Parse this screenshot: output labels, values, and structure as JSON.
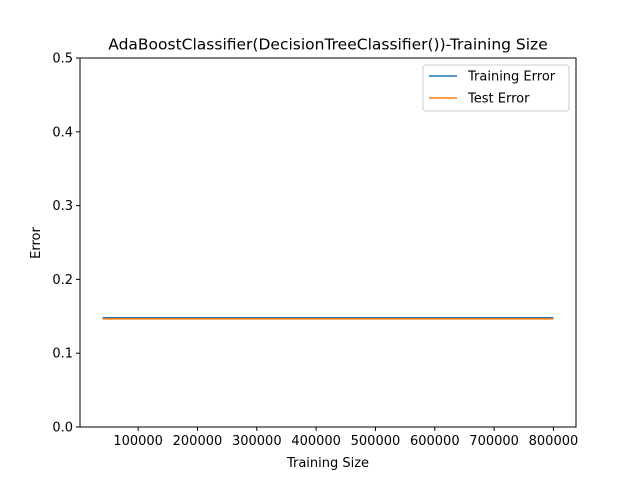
{
  "chart_data": {
    "type": "line",
    "title": "AdaBoostClassifier(DecisionTreeClassifier())-Training Size",
    "xlabel": "Training Size",
    "ylabel": "Error",
    "x": [
      40000,
      800000
    ],
    "xlim": [
      2000,
      838000
    ],
    "ylim": [
      0,
      0.5
    ],
    "xticks": [
      100000,
      200000,
      300000,
      400000,
      500000,
      600000,
      700000,
      800000
    ],
    "xtick_labels": [
      "100000",
      "200000",
      "300000",
      "400000",
      "500000",
      "600000",
      "700000",
      "800000"
    ],
    "yticks": [
      0,
      0.1,
      0.2,
      0.3,
      0.4,
      0.5
    ],
    "ytick_labels": [
      "0.0",
      "0.1",
      "0.2",
      "0.3",
      "0.4",
      "0.5"
    ],
    "grid": false,
    "legend_position": "top-right",
    "series": [
      {
        "name": "Training Error",
        "color": "#1f77b4",
        "values": [
          0.148,
          0.148
        ]
      },
      {
        "name": "Test Error",
        "color": "#ff7f0e",
        "values": [
          0.1465,
          0.1465
        ]
      }
    ]
  }
}
